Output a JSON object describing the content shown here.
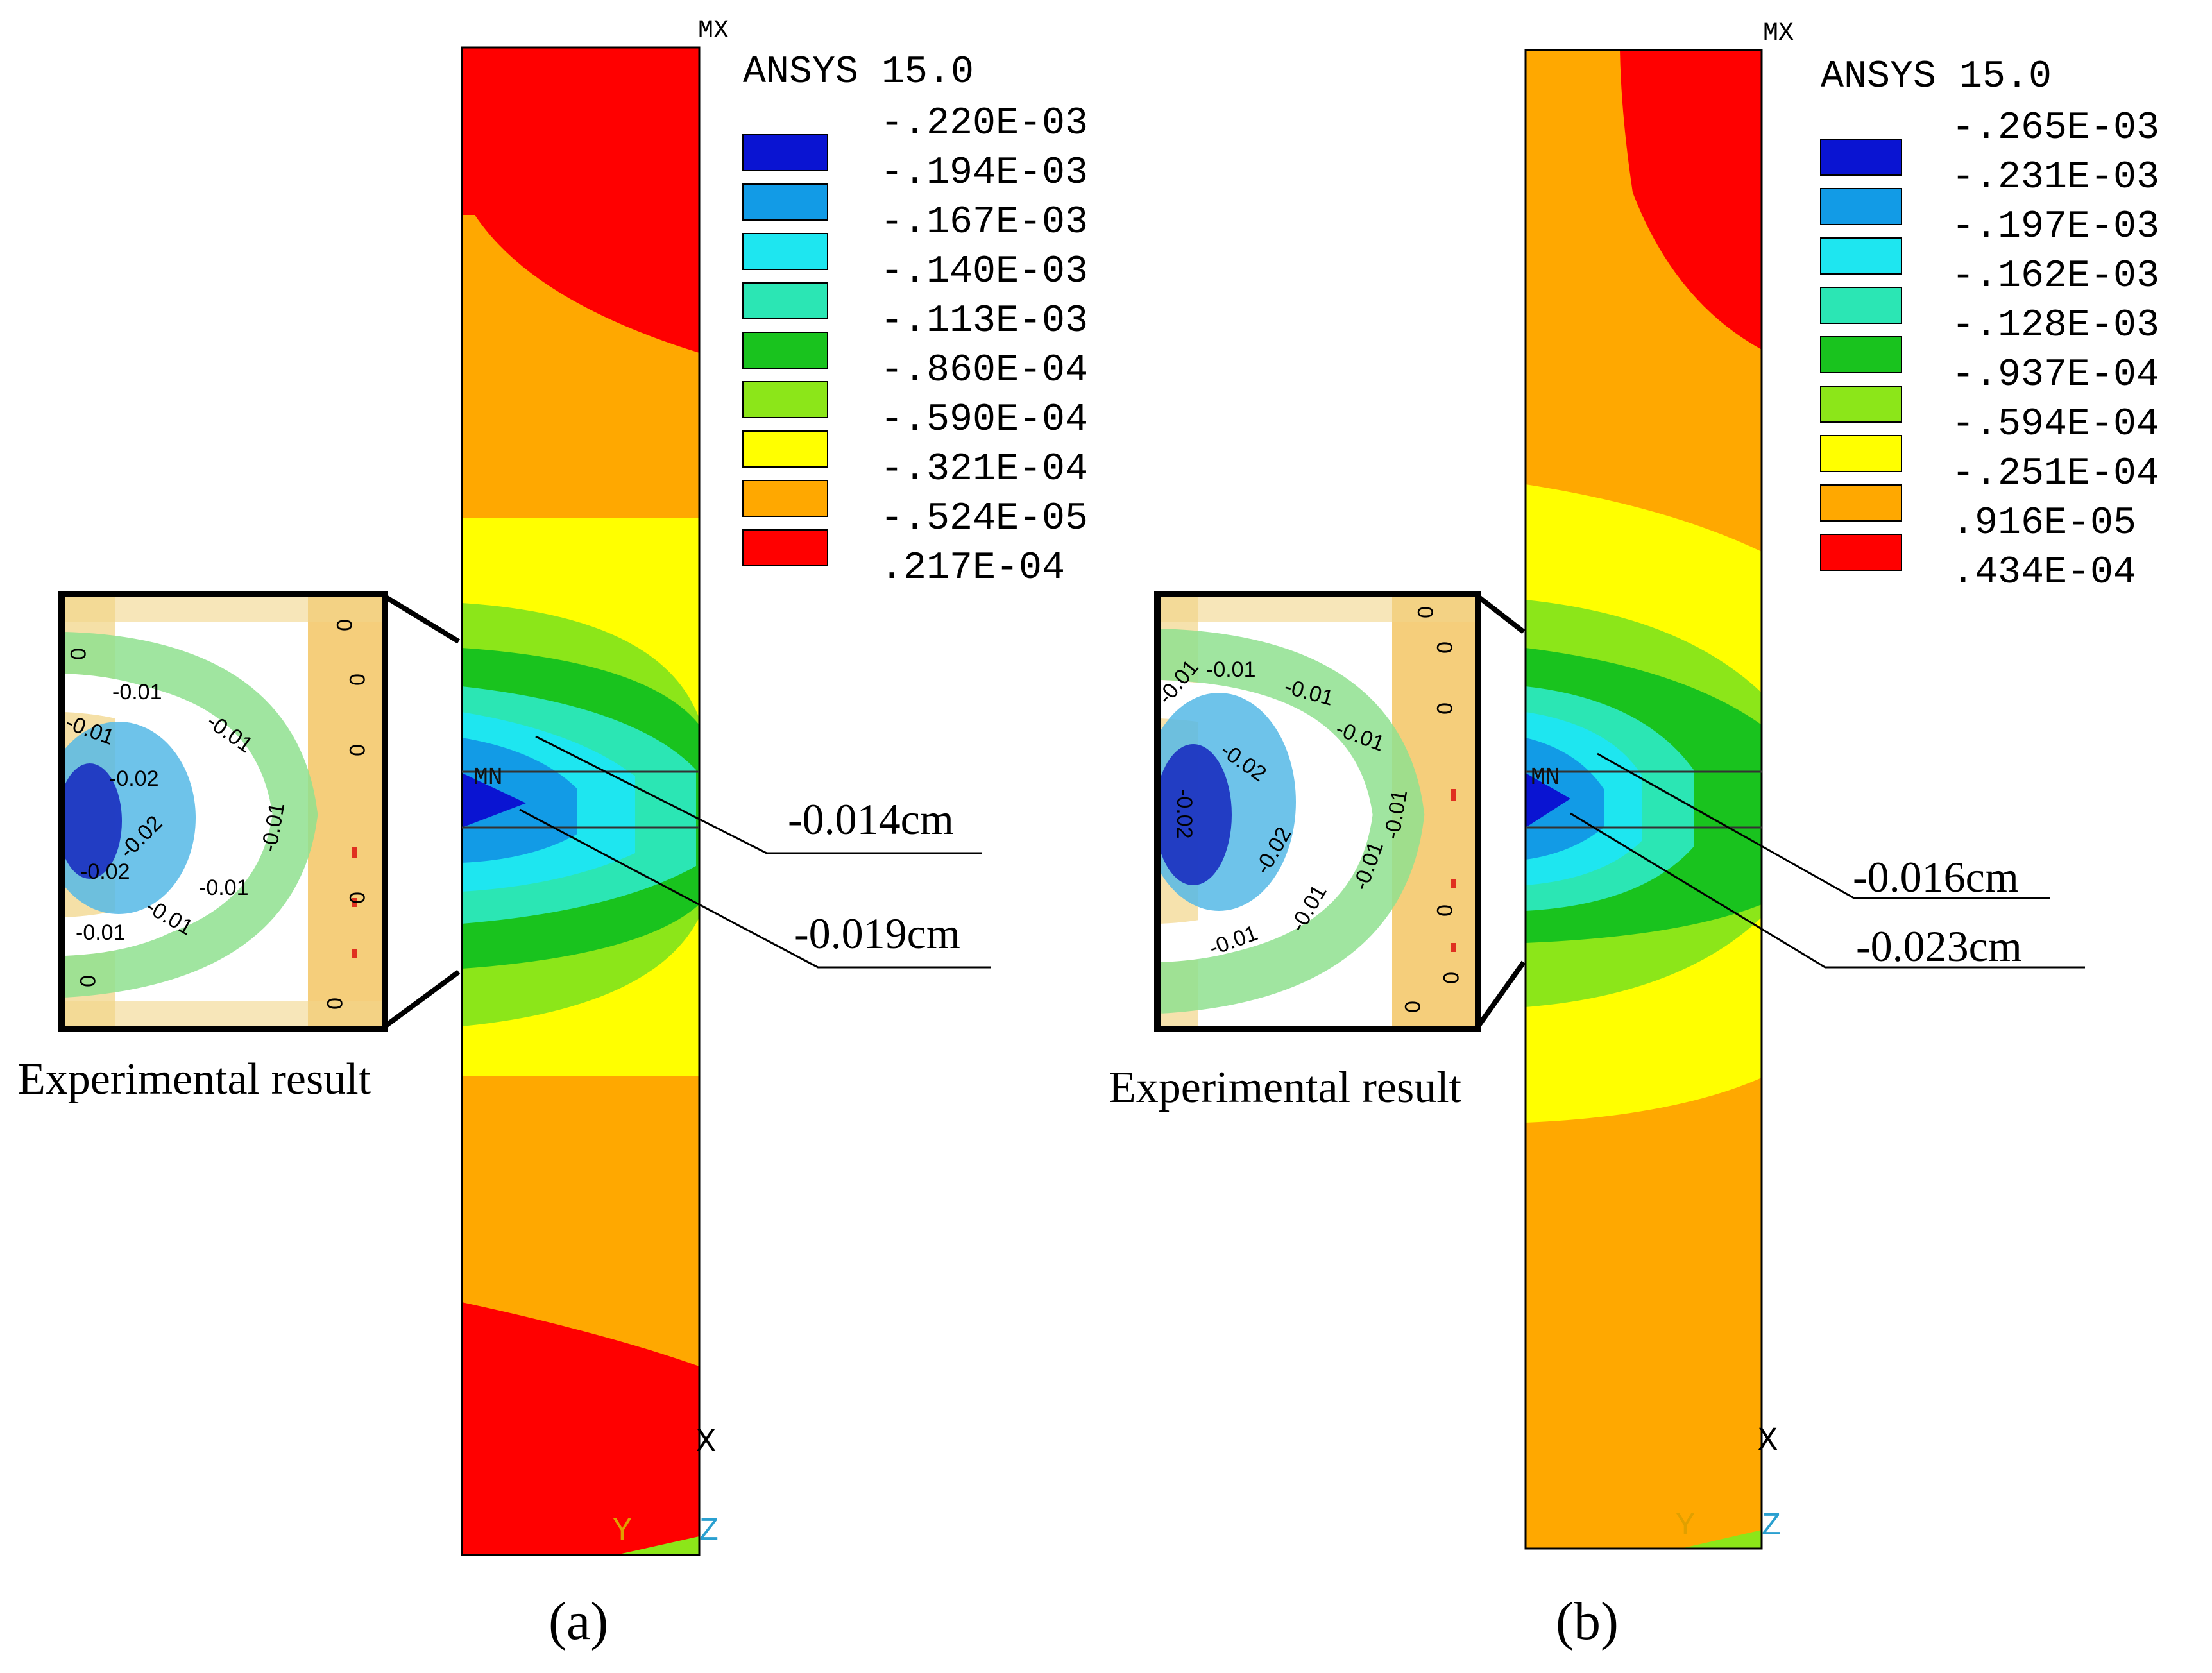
{
  "colors": {
    "c1": "#0a14d2",
    "c2": "#129be6",
    "c3": "#1ee6f0",
    "c4": "#2be6b4",
    "c5": "#19c31e",
    "c6": "#8ce619",
    "c7": "#ffff00",
    "c8": "#ffa800",
    "c9": "#ff0000",
    "orange": "#ffa800",
    "red": "#ff0000",
    "yellow": "#ffff00",
    "green": "#19c31e",
    "lightgreen": "#8ce619",
    "teal": "#2be6b4",
    "cyan": "#1ee6f0",
    "midblue": "#129be6",
    "darkblue": "#0a14d2",
    "axis_y": "#e0a000",
    "axis_z": "#2aa0d0"
  },
  "panels": [
    {
      "caption": "(a)",
      "software": "ANSYS 15.0",
      "max_marker": "MX",
      "min_marker": "MN",
      "legend_values": [
        "-.220E-03",
        "-.194E-03",
        "-.167E-03",
        "-.140E-03",
        "-.113E-03",
        "-.860E-04",
        "-.590E-04",
        "-.321E-04",
        "-.524E-05",
        ".217E-04"
      ],
      "axis_labels": {
        "x": "X",
        "y": "Y",
        "z": "Z"
      },
      "annotations": [
        "-0.014cm",
        "-0.019cm"
      ],
      "inset": {
        "caption": "Experimental result",
        "contour_labels": [
          "-0.01",
          "-0.01",
          "-0.01",
          "-0.01",
          "-0.01",
          "-0.01",
          "-0.01",
          "-0.02",
          "-0.02",
          "-0.02",
          "0",
          "0",
          "0",
          "0",
          "0",
          "0",
          "0"
        ]
      }
    },
    {
      "caption": "(b)",
      "software": "ANSYS 15.0",
      "max_marker": "MX",
      "min_marker": "MN",
      "legend_values": [
        "-.265E-03",
        "-.231E-03",
        "-.197E-03",
        "-.162E-03",
        "-.128E-03",
        "-.937E-04",
        "-.594E-04",
        "-.251E-04",
        ".916E-05",
        ".434E-04"
      ],
      "axis_labels": {
        "x": "X",
        "y": "Y",
        "z": "Z"
      },
      "annotations": [
        "-0.016cm",
        "-0.023cm"
      ],
      "inset": {
        "caption": "Experimental result",
        "contour_labels": [
          "-0.01",
          "-0.01",
          "-0.01",
          "-0.01",
          "-0.01",
          "-0.01",
          "-0.01",
          "-0.01",
          "-0.02",
          "-0.02",
          "-0.02",
          "0",
          "0",
          "0",
          "0",
          "0",
          "0"
        ]
      }
    }
  ]
}
